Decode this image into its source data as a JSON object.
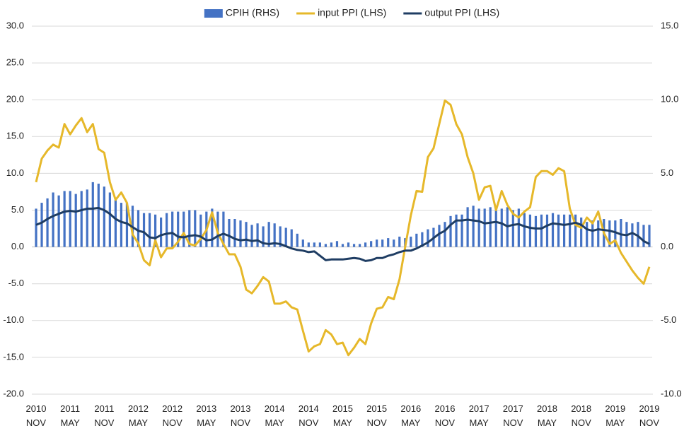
{
  "chart_data": {
    "type": "combo",
    "legend": "top",
    "grid": true,
    "categories": [
      "2010\nNOV",
      null,
      null,
      null,
      null,
      null,
      "2011\nMAY",
      null,
      null,
      null,
      null,
      null,
      "2011\nNOV",
      null,
      null,
      null,
      null,
      null,
      "2012\nMAY",
      null,
      null,
      null,
      null,
      null,
      "2012\nNOV",
      null,
      null,
      null,
      null,
      null,
      "2013\nMAY",
      null,
      null,
      null,
      null,
      null,
      "2013\nNOV",
      null,
      null,
      null,
      null,
      null,
      "2014\nMAY",
      null,
      null,
      null,
      null,
      null,
      "2014\nNOV",
      null,
      null,
      null,
      null,
      null,
      "2015\nMAY",
      null,
      null,
      null,
      null,
      null,
      "2015\nNOV",
      null,
      null,
      null,
      null,
      null,
      "2016\nMAY",
      null,
      null,
      null,
      null,
      null,
      "2016\nNOV",
      null,
      null,
      null,
      null,
      null,
      "2017\nMAY",
      null,
      null,
      null,
      null,
      null,
      "2017\nNOV",
      null,
      null,
      null,
      null,
      null,
      "2018\nMAY",
      null,
      null,
      null,
      null,
      null,
      "2018\nNOV",
      null,
      null,
      null,
      null,
      null,
      "2019\nMAY",
      null,
      null,
      null,
      null,
      null,
      "2019\nNOV"
    ],
    "ylim": [
      -20,
      30
    ],
    "yticks": [
      {
        "value": -20,
        "label": "-20.0"
      },
      {
        "value": -15,
        "label": "-15.0"
      },
      {
        "value": -10,
        "label": "-10.0"
      },
      {
        "value": -5,
        "label": "-5.0"
      },
      {
        "value": 0,
        "label": "0.0"
      },
      {
        "value": 5,
        "label": "5.0"
      },
      {
        "value": 10,
        "label": "10.0"
      },
      {
        "value": 15,
        "label": "15.0"
      },
      {
        "value": 20,
        "label": "20.0"
      },
      {
        "value": 25,
        "label": "25.0"
      },
      {
        "value": 30,
        "label": "30.0"
      }
    ],
    "y2lim": [
      -10,
      15
    ],
    "y2ticks": [
      {
        "value": -10,
        "label": "-10.0"
      },
      {
        "value": -5,
        "label": "-5.0"
      },
      {
        "value": 0,
        "label": "0.0"
      },
      {
        "value": 5,
        "label": "5.0"
      },
      {
        "value": 10,
        "label": "10.0"
      },
      {
        "value": 15,
        "label": "15.0"
      }
    ],
    "series": [
      {
        "name": "CPIH (RHS)",
        "type": "bar",
        "axis": "y2",
        "color": "#4472c4",
        "values": [
          2.6,
          3.0,
          3.3,
          3.7,
          3.5,
          3.8,
          3.8,
          3.6,
          3.8,
          3.9,
          4.4,
          4.3,
          4.1,
          3.7,
          3.2,
          3.0,
          3.0,
          2.8,
          2.5,
          2.3,
          2.3,
          2.2,
          2.0,
          2.3,
          2.4,
          2.4,
          2.4,
          2.5,
          2.5,
          2.2,
          2.4,
          2.6,
          2.4,
          2.4,
          1.9,
          1.9,
          1.8,
          1.7,
          1.5,
          1.6,
          1.4,
          1.7,
          1.6,
          1.4,
          1.3,
          1.2,
          0.9,
          0.5,
          0.3,
          0.3,
          0.3,
          0.2,
          0.3,
          0.4,
          0.2,
          0.3,
          0.2,
          0.2,
          0.3,
          0.4,
          0.5,
          0.5,
          0.6,
          0.5,
          0.7,
          0.6,
          0.7,
          0.9,
          1.0,
          1.2,
          1.3,
          1.5,
          1.7,
          2.1,
          2.2,
          2.2,
          2.7,
          2.8,
          2.6,
          2.6,
          2.7,
          2.8,
          2.6,
          2.7,
          2.5,
          2.6,
          2.3,
          2.2,
          2.1,
          2.2,
          2.2,
          2.3,
          2.2,
          2.2,
          2.2,
          2.2,
          2.0,
          1.7,
          1.8,
          1.8,
          1.9,
          1.8,
          1.8,
          1.9,
          1.7,
          1.6,
          1.7,
          1.5,
          1.5
        ]
      },
      {
        "name": "input PPI (LHS)",
        "type": "line",
        "color": "#e6b82a",
        "values": [
          8.8,
          12.0,
          13.1,
          13.9,
          13.5,
          16.7,
          15.3,
          16.5,
          17.5,
          15.6,
          16.7,
          13.3,
          12.8,
          8.8,
          6.4,
          7.4,
          6.0,
          1.7,
          0.5,
          -1.8,
          -2.5,
          0.9,
          -1.4,
          -0.2,
          -0.2,
          0.7,
          1.9,
          0.4,
          0.2,
          1.1,
          2.3,
          4.7,
          1.9,
          0.4,
          -1.0,
          -1.0,
          -2.7,
          -5.8,
          -6.3,
          -5.3,
          -4.1,
          -4.7,
          -7.7,
          -7.7,
          -7.4,
          -8.2,
          -8.5,
          -11.4,
          -14.2,
          -13.5,
          -13.2,
          -11.3,
          -11.9,
          -13.2,
          -13.0,
          -14.7,
          -13.7,
          -12.5,
          -13.2,
          -10.4,
          -8.4,
          -8.2,
          -6.8,
          -7.1,
          -4.4,
          0.0,
          4.3,
          7.6,
          7.5,
          12.2,
          13.4,
          16.7,
          19.9,
          19.3,
          16.7,
          15.3,
          12.2,
          10.0,
          6.4,
          8.1,
          8.3,
          5.0,
          7.6,
          5.7,
          4.5,
          4.0,
          4.8,
          5.4,
          9.5,
          10.3,
          10.3,
          9.8,
          10.7,
          10.3,
          5.2,
          3.0,
          2.6,
          4.0,
          3.2,
          4.8,
          1.9,
          0.4,
          0.9,
          -0.8,
          -2.0,
          -3.2,
          -4.2,
          -5.0,
          -2.7
        ]
      },
      {
        "name": "output PPI (LHS)",
        "type": "line",
        "color": "#1f3d63",
        "values": [
          3.0,
          3.3,
          3.8,
          4.2,
          4.5,
          4.8,
          4.9,
          4.8,
          5.0,
          5.2,
          5.2,
          5.3,
          5.0,
          4.5,
          3.8,
          3.4,
          3.2,
          2.7,
          2.2,
          2.0,
          1.3,
          1.2,
          1.6,
          1.8,
          1.9,
          1.4,
          1.3,
          1.5,
          1.6,
          1.4,
          0.9,
          1.0,
          1.5,
          1.8,
          1.5,
          1.1,
          0.9,
          1.0,
          0.8,
          0.9,
          0.5,
          0.4,
          0.5,
          0.4,
          0.1,
          -0.2,
          -0.4,
          -0.5,
          -0.7,
          -0.6,
          -1.2,
          -1.8,
          -1.7,
          -1.7,
          -1.7,
          -1.6,
          -1.5,
          -1.6,
          -1.9,
          -1.8,
          -1.5,
          -1.5,
          -1.2,
          -1.0,
          -0.7,
          -0.5,
          -0.5,
          -0.2,
          0.2,
          0.6,
          1.2,
          1.8,
          2.2,
          3.0,
          3.6,
          3.6,
          3.7,
          3.6,
          3.5,
          3.2,
          3.3,
          3.4,
          3.2,
          2.8,
          3.0,
          3.1,
          2.8,
          2.6,
          2.5,
          2.5,
          2.9,
          3.2,
          3.1,
          3.0,
          3.1,
          3.3,
          3.0,
          2.4,
          2.2,
          2.4,
          2.3,
          2.2,
          2.0,
          1.7,
          1.6,
          1.9,
          1.5,
          0.8,
          0.4
        ]
      }
    ]
  }
}
